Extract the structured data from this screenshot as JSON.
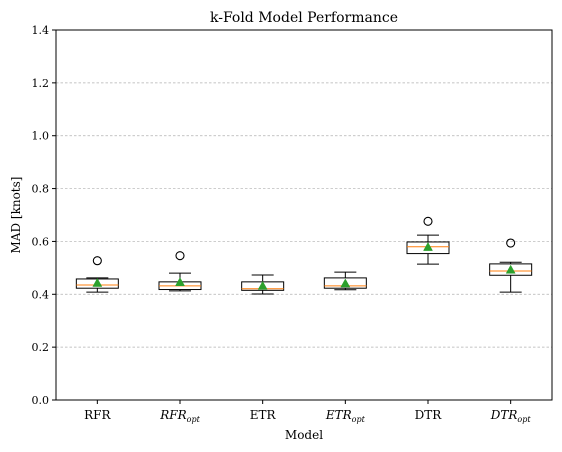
{
  "chart_data": {
    "type": "box",
    "title": "k-Fold Model Performance",
    "xlabel": "Model",
    "ylabel": "MAD [knots]",
    "ylim": [
      0.0,
      1.4
    ],
    "yticks": [
      "0.0",
      "0.2",
      "0.4",
      "0.6",
      "0.8",
      "1.0",
      "1.2",
      "1.4"
    ],
    "grid": "y-dashed",
    "categories": [
      {
        "label": "RFR",
        "sub": "",
        "italic": false
      },
      {
        "label": "RFR",
        "sub": "opt",
        "italic": true
      },
      {
        "label": "ETR",
        "sub": "",
        "italic": false
      },
      {
        "label": "ETR",
        "sub": "opt",
        "italic": true
      },
      {
        "label": "DTR",
        "sub": "",
        "italic": false
      },
      {
        "label": "DTR",
        "sub": "opt",
        "italic": true
      }
    ],
    "boxes": [
      {
        "whislo": 0.408,
        "q1": 0.423,
        "med": 0.435,
        "q3": 0.458,
        "whishi": 0.462,
        "mean": 0.443,
        "fliers": [
          0.527
        ]
      },
      {
        "whislo": 0.413,
        "q1": 0.418,
        "med": 0.432,
        "q3": 0.447,
        "whishi": 0.48,
        "mean": 0.446,
        "fliers": [
          0.546
        ]
      },
      {
        "whislo": 0.401,
        "q1": 0.415,
        "med": 0.421,
        "q3": 0.447,
        "whishi": 0.473,
        "mean": 0.432,
        "fliers": []
      },
      {
        "whislo": 0.417,
        "q1": 0.423,
        "med": 0.432,
        "q3": 0.462,
        "whishi": 0.484,
        "mean": 0.441,
        "fliers": []
      },
      {
        "whislo": 0.514,
        "q1": 0.554,
        "med": 0.58,
        "q3": 0.598,
        "whishi": 0.624,
        "mean": 0.579,
        "fliers": [
          0.676
        ]
      },
      {
        "whislo": 0.408,
        "q1": 0.472,
        "med": 0.488,
        "q3": 0.515,
        "whishi": 0.521,
        "mean": 0.493,
        "fliers": [
          0.594
        ]
      }
    ],
    "colors": {
      "box": "#000000",
      "median": "#ff7f0e",
      "mean": "#2ca02c",
      "flier": "#000000",
      "grid": "#b0b0b0"
    }
  }
}
